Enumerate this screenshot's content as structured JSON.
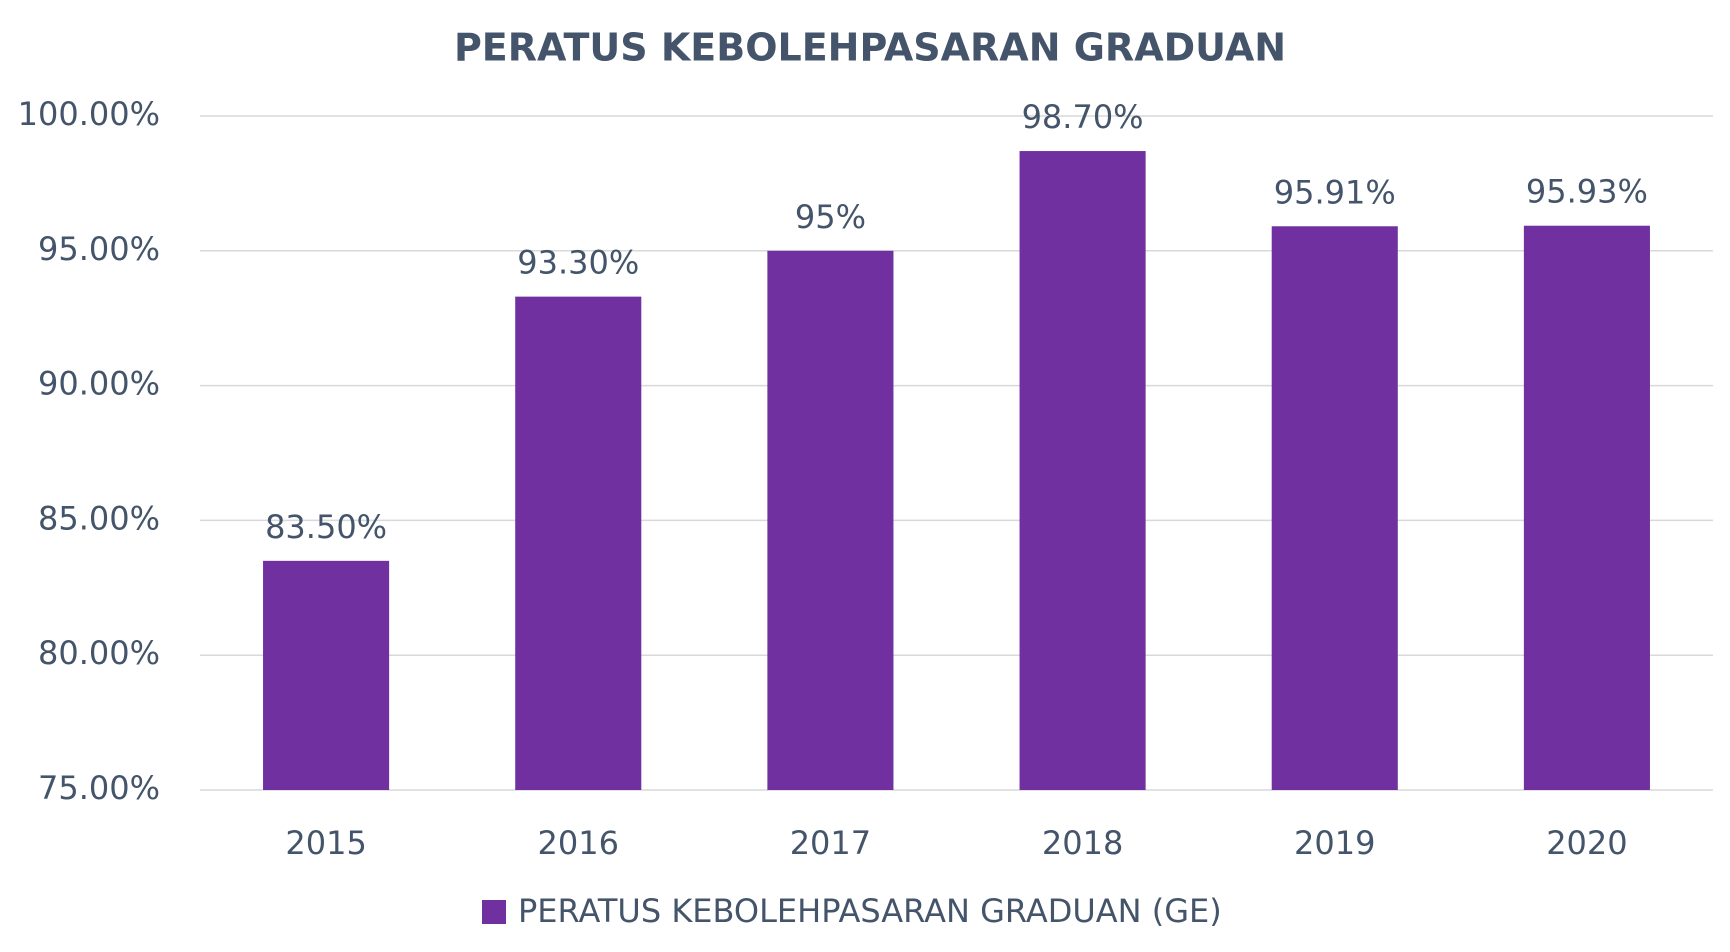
{
  "chart_data": {
    "type": "bar",
    "title": "PERATUS KEBOLEHPASARAN GRADUAN",
    "categories": [
      "2015",
      "2016",
      "2017",
      "2018",
      "2019",
      "2020"
    ],
    "series": [
      {
        "name": "PERATUS KEBOLEHPASARAN GRADUAN (GE)",
        "color": "#7030a0",
        "values": [
          83.5,
          93.3,
          95,
          98.7,
          95.91,
          95.93
        ],
        "value_labels": [
          "83.50%",
          "93.30%",
          "95%",
          "98.70%",
          "95.91%",
          "95.93%"
        ]
      }
    ],
    "ylim": [
      75,
      100
    ],
    "yticks": [
      {
        "value": 75,
        "label": "75.00%"
      },
      {
        "value": 80,
        "label": "80.00%"
      },
      {
        "value": 85,
        "label": "85.00%"
      },
      {
        "value": 90,
        "label": "90.00%"
      },
      {
        "value": 95,
        "label": "95.00%"
      },
      {
        "value": 100,
        "label": "100.00%"
      }
    ],
    "grid": true,
    "legend": "bottom"
  }
}
